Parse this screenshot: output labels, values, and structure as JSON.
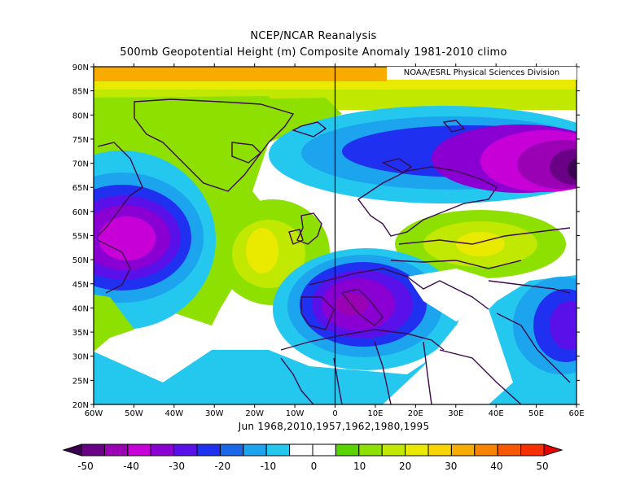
{
  "title_line1": "NCEP/NCAR Reanalysis",
  "title_line2": "500mb Geopotential Height (m) Composite Anomaly 1981-2010 climo",
  "credit": "NOAA/ESRL Physical Sciences Division",
  "subtitle": "Jun 1968,2010,1957,1962,1980,1995",
  "lat_labels": [
    "90N",
    "85N",
    "80N",
    "75N",
    "70N",
    "65N",
    "60N",
    "55N",
    "50N",
    "45N",
    "40N",
    "35N",
    "30N",
    "25N",
    "20N"
  ],
  "lon_labels": [
    "60W",
    "50W",
    "40W",
    "30W",
    "20W",
    "10W",
    "0",
    "10E",
    "20E",
    "30E",
    "40E",
    "50E",
    "60E"
  ],
  "colorbar": {
    "colors": [
      "#3c0050",
      "#6a0086",
      "#9a00b4",
      "#c800d8",
      "#8a00d2",
      "#5a10e8",
      "#2030f0",
      "#1a66e8",
      "#1ca4ee",
      "#24c8ee",
      "#ffffff",
      "#ffffff",
      "#5ad400",
      "#8ee000",
      "#c0e800",
      "#eaea00",
      "#f8d400",
      "#f8ac00",
      "#f88400",
      "#f85800",
      "#f83000",
      "#e80000"
    ],
    "labels": [
      "-50",
      "-40",
      "-30",
      "-20",
      "-10",
      "0",
      "10",
      "20",
      "30",
      "40",
      "50"
    ]
  }
}
